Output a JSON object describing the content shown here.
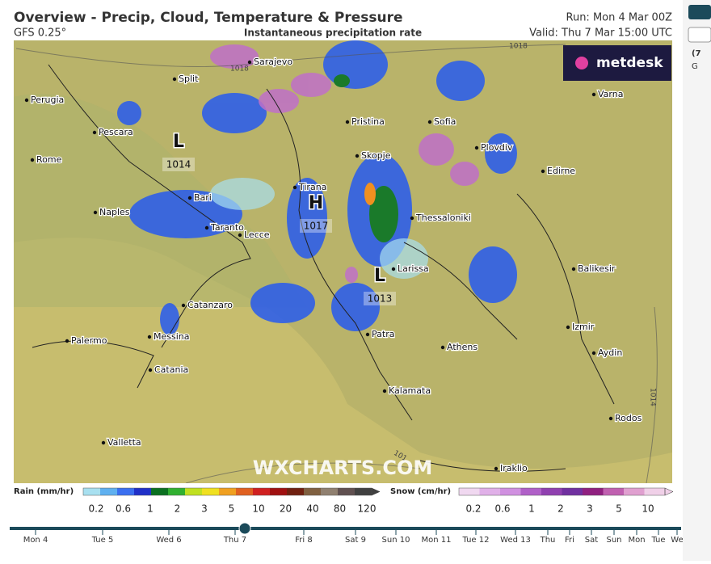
{
  "header": {
    "title": "Overview - Precip, Cloud, Temperature & Pressure",
    "model": "GFS 0.25°",
    "subtitle": "Instantaneous precipitation rate",
    "run": "Run: Mon 4 Mar 00Z",
    "valid": "Valid: Thu 7 Mar 15:00 UTC"
  },
  "logo": "metdesk",
  "cities": [
    "Sarajevo",
    "Split",
    "Perugia",
    "Pristina",
    "Sofia",
    "Varna",
    "Pescara",
    "Plovdiv",
    "Rome",
    "Skopje",
    "Edirne",
    "Tirana",
    "Bari",
    "Thessaloniki",
    "Naples",
    "Taranto",
    "Lecce",
    "Larissa",
    "Balikesir",
    "Catanzaro",
    "Izmir",
    "Palermo",
    "Messina",
    "Patra",
    "Athens",
    "Aydin",
    "Catania",
    "Kalamata",
    "Rodos",
    "Valletta",
    "Iraklio"
  ],
  "pressure_centers": [
    {
      "symbol": "L",
      "value": 1014
    },
    {
      "symbol": "H",
      "value": 1017
    },
    {
      "symbol": "L",
      "value": 1013
    }
  ],
  "isobar_labels": [
    "1018",
    "1018",
    "1014",
    "101"
  ],
  "watermark": "WXCHARTS.COM",
  "legend": {
    "rain": {
      "title": "Rain (mm/hr)",
      "ticks": [
        0.2,
        0.6,
        1,
        2,
        3,
        5,
        10,
        20,
        40,
        80,
        120
      ],
      "colors": [
        "#a8e0f0",
        "#5fb0f0",
        "#3a6ff0",
        "#2030c8",
        "#0a7020",
        "#30b030",
        "#c0e020",
        "#f0e020",
        "#f0a020",
        "#e06020",
        "#d02020",
        "#a01010",
        "#702010",
        "#806040",
        "#908070",
        "#605050",
        "#404040"
      ]
    },
    "snow": {
      "title": "Snow (cm/hr)",
      "ticks": [
        0.2,
        0.6,
        1,
        2,
        3,
        5,
        10
      ],
      "colors": [
        "#f0d8f0",
        "#e0b0e8",
        "#d090e0",
        "#b060c8",
        "#9040b0",
        "#7030a0",
        "#902080",
        "#c060b0",
        "#e0a0d0",
        "#f0d0e8"
      ]
    }
  },
  "timeline": {
    "days": [
      "Mon 4",
      "Tue 5",
      "Wed 6",
      "Thu 7",
      "Fri 8",
      "Sat 9",
      "Sun 10",
      "Mon 11",
      "Tue 12",
      "Wed 13",
      "Thu",
      "Fri",
      "Sat",
      "Sun",
      "Mon",
      "Tue",
      "We"
    ],
    "current": "Thu 7"
  },
  "side": [
    "(7",
    "G"
  ]
}
